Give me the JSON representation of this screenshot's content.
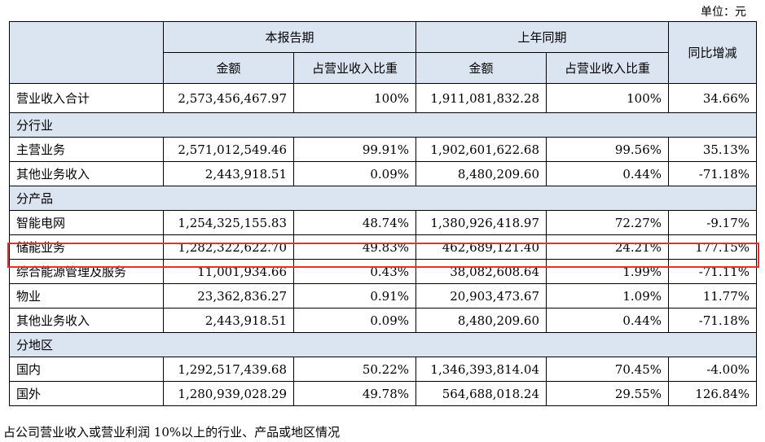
{
  "unit_label": "单位：元",
  "header": {
    "current_period": "本报告期",
    "prior_period": "上年同期",
    "yoy": "同比增减",
    "amount": "金额",
    "ratio": "占营业收入比重"
  },
  "total": {
    "label": "营业收入合计",
    "cur_amount": "2,573,456,467.97",
    "cur_ratio": "100%",
    "prev_amount": "1,911,081,832.28",
    "prev_ratio": "100%",
    "yoy": "34.66%"
  },
  "groups": {
    "industry": "分行业",
    "product": "分产品",
    "region": "分地区"
  },
  "industry_rows": [
    {
      "label": "主营业务",
      "cur_amount": "2,571,012,549.46",
      "cur_ratio": "99.91%",
      "prev_amount": "1,902,601,622.68",
      "prev_ratio": "99.56%",
      "yoy": "35.13%"
    },
    {
      "label": "其他业务收入",
      "cur_amount": "2,443,918.51",
      "cur_ratio": "0.09%",
      "prev_amount": "8,480,209.60",
      "prev_ratio": "0.44%",
      "yoy": "-71.18%"
    }
  ],
  "product_rows": [
    {
      "label": "智能电网",
      "cur_amount": "1,254,325,155.83",
      "cur_ratio": "48.74%",
      "prev_amount": "1,380,926,418.97",
      "prev_ratio": "72.27%",
      "yoy": "-9.17%"
    },
    {
      "label": "储能业务",
      "cur_amount": "1,282,322,622.70",
      "cur_ratio": "49.83%",
      "prev_amount": "462,689,121.40",
      "prev_ratio": "24.21%",
      "yoy": "177.15%"
    },
    {
      "label": "综合能源管理及服务",
      "cur_amount": "11,001,934.66",
      "cur_ratio": "0.43%",
      "prev_amount": "38,082,608.64",
      "prev_ratio": "1.99%",
      "yoy": "-71.11%"
    },
    {
      "label": "物业",
      "cur_amount": "23,362,836.27",
      "cur_ratio": "0.91%",
      "prev_amount": "20,903,473.67",
      "prev_ratio": "1.09%",
      "yoy": "11.77%"
    },
    {
      "label": "其他业务收入",
      "cur_amount": "2,443,918.51",
      "cur_ratio": "0.09%",
      "prev_amount": "8,480,209.60",
      "prev_ratio": "0.44%",
      "yoy": "-71.18%"
    }
  ],
  "region_rows": [
    {
      "label": "国内",
      "cur_amount": "1,292,517,439.68",
      "cur_ratio": "50.22%",
      "prev_amount": "1,346,393,814.04",
      "prev_ratio": "70.45%",
      "yoy": "-4.00%"
    },
    {
      "label": "国外",
      "cur_amount": "1,280,939,028.29",
      "cur_ratio": "49.78%",
      "prev_amount": "564,688,018.24",
      "prev_ratio": "29.55%",
      "yoy": "126.84%"
    }
  ],
  "caption": "占公司营业收入或营业利润 10%以上的行业、产品或地区情况",
  "highlight_color": "#e8302b",
  "header_bg": "#dbe5f1"
}
